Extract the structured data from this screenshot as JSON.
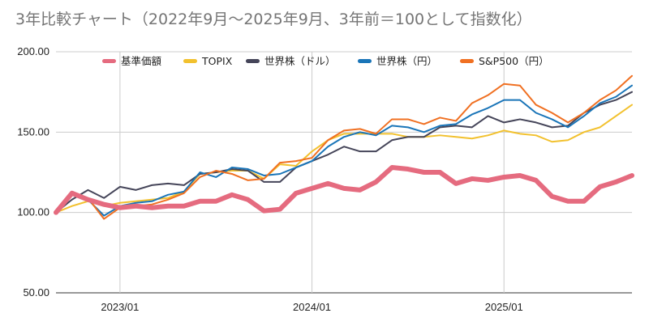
{
  "chart_data": {
    "type": "line",
    "title": "3年比較チャート（2022年9月～2025年9月、3年前＝100として指数化）",
    "xlabel": "",
    "ylabel": "",
    "ylim": [
      50,
      200
    ],
    "yticks": [
      50,
      100,
      150,
      200
    ],
    "ytick_labels": [
      "50.00",
      "100.00",
      "150.00",
      "200.00"
    ],
    "x_tick_labels": [
      {
        "label": "2023/01",
        "index": 4
      },
      {
        "label": "2024/01",
        "index": 16
      },
      {
        "label": "2025/01",
        "index": 28
      }
    ],
    "grid": true,
    "legend_position": "top",
    "x": [
      "2022/09",
      "2022/10",
      "2022/11",
      "2022/12",
      "2023/01",
      "2023/02",
      "2023/03",
      "2023/04",
      "2023/05",
      "2023/06",
      "2023/07",
      "2023/08",
      "2023/09",
      "2023/10",
      "2023/11",
      "2023/12",
      "2024/01",
      "2024/02",
      "2024/03",
      "2024/04",
      "2024/05",
      "2024/06",
      "2024/07",
      "2024/08",
      "2024/09",
      "2024/10",
      "2024/11",
      "2024/12",
      "2025/01",
      "2025/02",
      "2025/03",
      "2025/04",
      "2025/05",
      "2025/06",
      "2025/07",
      "2025/08",
      "2025/09"
    ],
    "series": [
      {
        "name": "基準価額",
        "color": "#e56b7f",
        "width": 6,
        "values": [
          100,
          112,
          108,
          105,
          103,
          104,
          103,
          104,
          104,
          107,
          107,
          111,
          108,
          101,
          102,
          112,
          115,
          118,
          115,
          114,
          119,
          128,
          127,
          125,
          125,
          118,
          121,
          120,
          122,
          123,
          120,
          110,
          107,
          107,
          116,
          119,
          123
        ]
      },
      {
        "name": "TOPIX",
        "color": "#f2c12e",
        "width": 2,
        "values": [
          100,
          104,
          107,
          104,
          106,
          107,
          108,
          109,
          113,
          124,
          125,
          126,
          126,
          121,
          130,
          129,
          138,
          145,
          149,
          149,
          149,
          149,
          147,
          147,
          148,
          147,
          146,
          148,
          151,
          149,
          148,
          144,
          145,
          150,
          153,
          160,
          167
        ]
      },
      {
        "name": "世界株（ドル）",
        "color": "#454559",
        "width": 2,
        "values": [
          100,
          108,
          114,
          109,
          116,
          114,
          117,
          118,
          117,
          124,
          125,
          127,
          126,
          119,
          119,
          128,
          132,
          136,
          141,
          138,
          138,
          145,
          147,
          147,
          153,
          154,
          153,
          160,
          156,
          158,
          156,
          153,
          154,
          162,
          167,
          170,
          175
        ]
      },
      {
        "name": "世界株（円）",
        "color": "#1a75b8",
        "width": 2,
        "values": [
          100,
          111,
          108,
          98,
          104,
          106,
          107,
          111,
          113,
          125,
          122,
          128,
          127,
          123,
          124,
          128,
          132,
          141,
          147,
          150,
          148,
          154,
          153,
          150,
          154,
          155,
          161,
          165,
          170,
          170,
          162,
          158,
          153,
          160,
          168,
          172,
          179
        ]
      },
      {
        "name": "S&P500（円）",
        "color": "#f07022",
        "width": 2,
        "values": [
          100,
          113,
          109,
          96,
          103,
          104,
          105,
          108,
          112,
          122,
          126,
          124,
          120,
          121,
          131,
          132,
          134,
          145,
          151,
          152,
          149,
          158,
          158,
          155,
          159,
          157,
          168,
          173,
          180,
          179,
          167,
          162,
          156,
          162,
          170,
          176,
          185
        ]
      }
    ]
  }
}
